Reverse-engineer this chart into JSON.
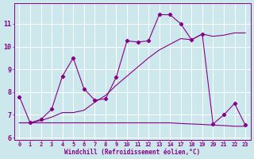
{
  "bg_color": "#cce8ec",
  "grid_color": "#ffffff",
  "line_color": "#880088",
  "xlabel": "Windchill (Refroidissement éolien,°C)",
  "xlim": [
    -0.3,
    23.3
  ],
  "ylim": [
    5.9,
    11.9
  ],
  "yticks": [
    6,
    7,
    8,
    9,
    10,
    11
  ],
  "xticks": [
    0,
    1,
    2,
    3,
    4,
    5,
    6,
    7,
    8,
    9,
    10,
    11,
    12,
    13,
    14,
    17,
    18,
    19,
    20,
    21,
    22,
    23
  ],
  "curve1_x": [
    0,
    1,
    2,
    3,
    4,
    5,
    6,
    7,
    8,
    9,
    10,
    11,
    12,
    13,
    14,
    17,
    18,
    19,
    20,
    21,
    22,
    23
  ],
  "curve1_y": [
    7.8,
    6.65,
    6.8,
    7.25,
    8.7,
    9.5,
    8.15,
    7.65,
    7.7,
    8.65,
    10.25,
    10.2,
    10.25,
    11.4,
    11.4,
    11.0,
    10.3,
    10.55,
    6.6,
    7.0,
    7.5,
    6.55
  ],
  "curve2_x": [
    0,
    1,
    2,
    3,
    4,
    5,
    6,
    7,
    8,
    9,
    10,
    11,
    12,
    13,
    14,
    17,
    18,
    19,
    20,
    21,
    22,
    23
  ],
  "curve2_y": [
    6.65,
    6.65,
    6.75,
    6.9,
    7.1,
    7.1,
    7.2,
    7.55,
    7.85,
    8.3,
    8.7,
    9.1,
    9.5,
    9.85,
    10.1,
    10.35,
    10.3,
    10.55,
    10.45,
    10.5,
    10.6,
    10.6
  ],
  "curve3_x": [
    0,
    1,
    2,
    3,
    4,
    5,
    6,
    7,
    8,
    9,
    10,
    11,
    12,
    13,
    14,
    17,
    18,
    19,
    20,
    21,
    22,
    23
  ],
  "curve3_y": [
    6.65,
    6.65,
    6.65,
    6.65,
    6.65,
    6.65,
    6.65,
    6.65,
    6.65,
    6.65,
    6.65,
    6.65,
    6.65,
    6.65,
    6.65,
    6.62,
    6.6,
    6.58,
    6.55,
    6.53,
    6.5,
    6.5
  ]
}
